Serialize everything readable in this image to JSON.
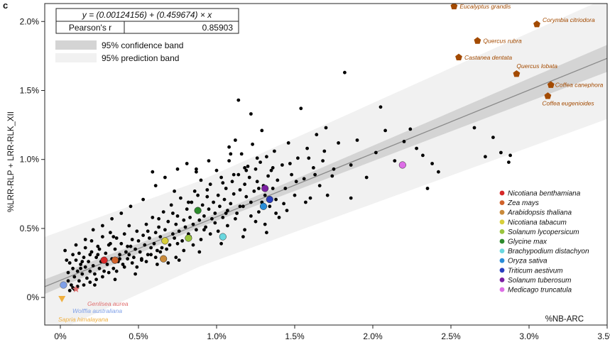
{
  "chart_data": {
    "type": "scatter",
    "panel_label": "c",
    "xlabel": "%NB-ARC",
    "ylabel": "%LRR-RLP + LRR-RLK_XII",
    "xlim": [
      -0.001,
      0.035
    ],
    "ylim": [
      -0.002,
      0.0213
    ],
    "x_ticks": [
      0,
      0.005,
      0.01,
      0.015,
      0.02,
      0.025,
      0.03,
      0.035
    ],
    "x_tick_labels": [
      "0%",
      "0.5%",
      "1.0%",
      "1.5%",
      "2.0%",
      "2.5%",
      "3.0%",
      "3.5%"
    ],
    "y_ticks": [
      0,
      0.005,
      0.01,
      0.015,
      0.02
    ],
    "y_tick_labels": [
      "0%",
      "0.5%",
      "1.0%",
      "1.5%",
      "2.0%"
    ],
    "grid": false,
    "fit": {
      "equation_text": "y = (0.00124156) + (0.459674) × x",
      "intercept": 0.00124156,
      "slope": 0.459674,
      "stat_label": "Pearson's r",
      "stat_value": "0.85903",
      "band_legend": [
        "95% confidence band",
        "95% prediction band"
      ],
      "colors": {
        "line": "#8a8a8a",
        "confidence": "#d4d4d4",
        "prediction": "#f1f1f1"
      }
    },
    "background_points": {
      "color": "#000000",
      "points": [
        [
          0.0003,
          0.0034
        ],
        [
          0.0004,
          0.0027
        ],
        [
          0.0005,
          0.0018
        ],
        [
          0.0005,
          0.0012
        ],
        [
          0.0006,
          0.0025
        ],
        [
          0.0007,
          0.0009
        ],
        [
          0.0008,
          0.0031
        ],
        [
          0.0008,
          0.0021
        ],
        [
          0.0009,
          0.0015
        ],
        [
          0.001,
          0.0027
        ],
        [
          0.001,
          0.0038
        ],
        [
          0.0011,
          0.0019
        ],
        [
          0.0012,
          0.0012
        ],
        [
          0.0012,
          0.0032
        ],
        [
          0.0013,
          0.0024
        ],
        [
          0.0014,
          0.0017
        ],
        [
          0.0015,
          0.0029
        ],
        [
          0.0016,
          0.0022
        ],
        [
          0.0016,
          0.0036
        ],
        [
          0.0017,
          0.0014
        ],
        [
          0.0018,
          0.0026
        ],
        [
          0.0019,
          0.0019
        ],
        [
          0.002,
          0.0033
        ],
        [
          0.002,
          0.0041
        ],
        [
          0.0021,
          0.0023
        ],
        [
          0.0022,
          0.0017
        ],
        [
          0.0023,
          0.0029
        ],
        [
          0.0024,
          0.0037
        ],
        [
          0.0025,
          0.0021
        ],
        [
          0.0026,
          0.0026
        ],
        [
          0.0027,
          0.0044
        ],
        [
          0.0028,
          0.0019
        ],
        [
          0.0029,
          0.0032
        ],
        [
          0.003,
          0.0024
        ],
        [
          0.0031,
          0.0038
        ],
        [
          0.0032,
          0.0047
        ],
        [
          0.0033,
          0.0028
        ],
        [
          0.0034,
          0.0021
        ],
        [
          0.0035,
          0.0035
        ],
        [
          0.0036,
          0.0043
        ],
        [
          0.0037,
          0.0026
        ],
        [
          0.0038,
          0.0031
        ],
        [
          0.0039,
          0.0039
        ],
        [
          0.004,
          0.0024
        ],
        [
          0.0041,
          0.0046
        ],
        [
          0.0042,
          0.0033
        ],
        [
          0.0043,
          0.0028
        ],
        [
          0.0044,
          0.0052
        ],
        [
          0.0045,
          0.0037
        ],
        [
          0.0046,
          0.0042
        ],
        [
          0.0047,
          0.0029
        ],
        [
          0.0048,
          0.0035
        ],
        [
          0.0049,
          0.0048
        ],
        [
          0.005,
          0.0041
        ],
        [
          0.0051,
          0.0033
        ],
        [
          0.0052,
          0.0027
        ],
        [
          0.0053,
          0.0045
        ],
        [
          0.0054,
          0.0038
        ],
        [
          0.0055,
          0.0053
        ],
        [
          0.0056,
          0.0031
        ],
        [
          0.0057,
          0.0043
        ],
        [
          0.0058,
          0.0036
        ],
        [
          0.0059,
          0.0058
        ],
        [
          0.006,
          0.0039
        ],
        [
          0.0061,
          0.0047
        ],
        [
          0.0062,
          0.0034
        ],
        [
          0.0063,
          0.0051
        ],
        [
          0.0064,
          0.0044
        ],
        [
          0.0065,
          0.0036
        ],
        [
          0.0066,
          0.0062
        ],
        [
          0.0067,
          0.0049
        ],
        [
          0.0068,
          0.0041
        ],
        [
          0.0069,
          0.0055
        ],
        [
          0.007,
          0.0038
        ],
        [
          0.0071,
          0.0067
        ],
        [
          0.0072,
          0.0046
        ],
        [
          0.0073,
          0.0043
        ],
        [
          0.0074,
          0.0053
        ],
        [
          0.0075,
          0.0059
        ],
        [
          0.0076,
          0.0048
        ],
        [
          0.0077,
          0.0072
        ],
        [
          0.0078,
          0.0041
        ],
        [
          0.0079,
          0.0056
        ],
        [
          0.008,
          0.0051
        ],
        [
          0.0081,
          0.0064
        ],
        [
          0.0082,
          0.0046
        ],
        [
          0.0083,
          0.0058
        ],
        [
          0.0084,
          0.0069
        ],
        [
          0.0085,
          0.0053
        ],
        [
          0.0086,
          0.0077
        ],
        [
          0.0087,
          0.0049
        ],
        [
          0.0088,
          0.0062
        ],
        [
          0.0089,
          0.0056
        ],
        [
          0.009,
          0.0085
        ],
        [
          0.0091,
          0.0067
        ],
        [
          0.0092,
          0.0059
        ],
        [
          0.0093,
          0.0051
        ],
        [
          0.0094,
          0.0073
        ],
        [
          0.0095,
          0.0064
        ],
        [
          0.0096,
          0.0082
        ],
        [
          0.0097,
          0.0057
        ],
        [
          0.0098,
          0.0069
        ],
        [
          0.0099,
          0.0061
        ],
        [
          0.01,
          0.0092
        ],
        [
          0.0101,
          0.0074
        ],
        [
          0.0102,
          0.0066
        ],
        [
          0.0103,
          0.0087
        ],
        [
          0.0104,
          0.0058
        ],
        [
          0.0105,
          0.0071
        ],
        [
          0.0106,
          0.0079
        ],
        [
          0.0107,
          0.0063
        ],
        [
          0.0108,
          0.0099
        ],
        [
          0.0109,
          0.0068
        ],
        [
          0.011,
          0.0084
        ],
        [
          0.0111,
          0.0075
        ],
        [
          0.0112,
          0.0114
        ],
        [
          0.0113,
          0.0061
        ],
        [
          0.0114,
          0.0089
        ],
        [
          0.0115,
          0.0078
        ],
        [
          0.0116,
          0.0104
        ],
        [
          0.0117,
          0.0066
        ],
        [
          0.0118,
          0.0082
        ],
        [
          0.0119,
          0.0073
        ],
        [
          0.012,
          0.0095
        ],
        [
          0.0121,
          0.0087
        ],
        [
          0.0122,
          0.0069
        ],
        [
          0.0123,
          0.0111
        ],
        [
          0.0124,
          0.0077
        ],
        [
          0.0125,
          0.0093
        ],
        [
          0.0126,
          0.0084
        ],
        [
          0.0127,
          0.0062
        ],
        [
          0.0128,
          0.0098
        ],
        [
          0.0129,
          0.0121
        ],
        [
          0.013,
          0.0081
        ],
        [
          0.0131,
          0.0074
        ],
        [
          0.0132,
          0.0102
        ],
        [
          0.0133,
          0.0088
        ],
        [
          0.0134,
          0.0066
        ],
        [
          0.0135,
          0.0092
        ],
        [
          0.0136,
          0.0079
        ],
        [
          0.0137,
          0.0106
        ],
        [
          0.0138,
          0.0071
        ],
        [
          0.0139,
          0.0085
        ],
        [
          0.014,
          0.0058
        ],
        [
          0.0142,
          0.0096
        ],
        [
          0.0144,
          0.0079
        ],
        [
          0.0146,
          0.0112
        ],
        [
          0.0148,
          0.0089
        ],
        [
          0.015,
          0.0074
        ],
        [
          0.0152,
          0.0101
        ],
        [
          0.0154,
          0.0137
        ],
        [
          0.0156,
          0.0086
        ],
        [
          0.0158,
          0.0108
        ],
        [
          0.016,
          0.0072
        ],
        [
          0.0162,
          0.0094
        ],
        [
          0.0164,
          0.0118
        ],
        [
          0.0166,
          0.0081
        ],
        [
          0.0168,
          0.0099
        ],
        [
          0.017,
          0.0123
        ],
        [
          0.0174,
          0.0088
        ],
        [
          0.0178,
          0.0112
        ],
        [
          0.0182,
          0.0163
        ],
        [
          0.0186,
          0.0096
        ],
        [
          0.019,
          0.0114
        ],
        [
          0.0196,
          0.0087
        ],
        [
          0.0202,
          0.0105
        ],
        [
          0.0205,
          0.0138
        ],
        [
          0.0208,
          0.0121
        ],
        [
          0.0214,
          0.0099
        ],
        [
          0.022,
          0.0113
        ],
        [
          0.0224,
          0.0122
        ],
        [
          0.0228,
          0.0108
        ],
        [
          0.0232,
          0.0103
        ],
        [
          0.0235,
          0.0079
        ],
        [
          0.0238,
          0.0097
        ],
        [
          0.0242,
          0.0091
        ],
        [
          0.0265,
          0.0123
        ],
        [
          0.0272,
          0.0102
        ],
        [
          0.0277,
          0.0116
        ],
        [
          0.0282,
          0.0105
        ],
        [
          0.0287,
          0.0098
        ],
        [
          0.0288,
          0.0103
        ],
        [
          0.0006,
          0.0005
        ],
        [
          0.0008,
          0.0007
        ],
        [
          0.0011,
          0.0008
        ],
        [
          0.0015,
          0.0009
        ],
        [
          0.0019,
          0.0011
        ],
        [
          0.0023,
          0.0013
        ],
        [
          0.0027,
          0.0015
        ],
        [
          0.0031,
          0.0018
        ],
        [
          0.0036,
          0.0019
        ],
        [
          0.0041,
          0.0022
        ],
        [
          0.0046,
          0.0025
        ],
        [
          0.0052,
          0.0028
        ],
        [
          0.0058,
          0.0031
        ],
        [
          0.0064,
          0.0033
        ],
        [
          0.0069,
          0.0025
        ],
        [
          0.0074,
          0.0029
        ],
        [
          0.0079,
          0.0034
        ],
        [
          0.0085,
          0.0038
        ],
        [
          0.009,
          0.0042
        ],
        [
          0.0096,
          0.0046
        ],
        [
          0.0101,
          0.0048
        ],
        [
          0.0107,
          0.0052
        ],
        [
          0.0112,
          0.0057
        ],
        [
          0.0118,
          0.0049
        ],
        [
          0.0125,
          0.0055
        ],
        [
          0.0132,
          0.0047
        ],
        [
          0.0138,
          0.0061
        ],
        [
          0.0145,
          0.0063
        ],
        [
          0.0157,
          0.0069
        ],
        [
          0.0171,
          0.0074
        ],
        [
          0.0186,
          0.0072
        ],
        [
          0.0016,
          0.0042
        ],
        [
          0.0021,
          0.0049
        ],
        [
          0.0027,
          0.0052
        ],
        [
          0.0033,
          0.0057
        ],
        [
          0.0039,
          0.0061
        ],
        [
          0.0045,
          0.0066
        ],
        [
          0.0053,
          0.0071
        ],
        [
          0.0061,
          0.0081
        ],
        [
          0.0067,
          0.0087
        ],
        [
          0.0073,
          0.0077
        ],
        [
          0.0081,
          0.0097
        ],
        [
          0.0087,
          0.0093
        ],
        [
          0.0095,
          0.0099
        ],
        [
          0.0109,
          0.0104
        ],
        [
          0.0118,
          0.0094
        ],
        [
          0.0126,
          0.0101
        ],
        [
          0.0013,
          0.0021
        ],
        [
          0.0019,
          0.0031
        ],
        [
          0.0025,
          0.0035
        ],
        [
          0.0032,
          0.0039
        ],
        [
          0.0038,
          0.0028
        ],
        [
          0.0044,
          0.0031
        ],
        [
          0.0049,
          0.0022
        ],
        [
          0.0055,
          0.0026
        ],
        [
          0.0061,
          0.0029
        ],
        [
          0.0068,
          0.0035
        ],
        [
          0.0075,
          0.0039
        ],
        [
          0.0083,
          0.0044
        ],
        [
          0.0092,
          0.0049
        ],
        [
          0.0099,
          0.0054
        ],
        [
          0.0106,
          0.0061
        ],
        [
          0.0115,
          0.0066
        ],
        [
          0.0122,
          0.0059
        ],
        [
          0.0129,
          0.0069
        ],
        [
          0.0135,
          0.0071
        ],
        [
          0.0143,
          0.0068
        ],
        [
          0.0151,
          0.0084
        ],
        [
          0.0163,
          0.0089
        ],
        [
          0.0175,
          0.0093
        ],
        [
          0.0009,
          0.0006
        ],
        [
          0.0014,
          0.0026
        ],
        [
          0.0024,
          0.0031
        ],
        [
          0.0034,
          0.0044
        ],
        [
          0.0043,
          0.0037
        ],
        [
          0.0056,
          0.0048
        ],
        [
          0.0063,
          0.0057
        ],
        [
          0.0072,
          0.0061
        ],
        [
          0.0082,
          0.0069
        ],
        [
          0.0088,
          0.0074
        ],
        [
          0.0094,
          0.0078
        ],
        [
          0.0104,
          0.0083
        ],
        [
          0.0111,
          0.0089
        ],
        [
          0.0119,
          0.0092
        ],
        [
          0.0127,
          0.0079
        ],
        [
          0.0136,
          0.0094
        ],
        [
          0.0147,
          0.0097
        ],
        [
          0.0159,
          0.0101
        ],
        [
          0.0169,
          0.0106
        ],
        [
          0.0022,
          0.0009
        ],
        [
          0.0035,
          0.0013
        ],
        [
          0.0048,
          0.0017
        ],
        [
          0.0062,
          0.0024
        ],
        [
          0.0076,
          0.0027
        ],
        [
          0.0089,
          0.0033
        ],
        [
          0.0103,
          0.0039
        ],
        [
          0.0117,
          0.0044
        ],
        [
          0.0131,
          0.0053
        ],
        [
          0.0059,
          0.0091
        ],
        [
          0.0075,
          0.0093
        ],
        [
          0.0087,
          0.0091
        ],
        [
          0.0108,
          0.0109
        ],
        [
          0.0122,
          0.0133
        ],
        [
          0.0114,
          0.0143
        ]
      ]
    },
    "species": [
      {
        "name": "Nicotiana benthamiana",
        "color": "#d62828",
        "x": 0.0028,
        "y": 0.0027
      },
      {
        "name": "Zea mays",
        "color": "#d0622b",
        "x": 0.0035,
        "y": 0.0027
      },
      {
        "name": "Arabidopsis thaliana",
        "color": "#c98a3a",
        "x": 0.0066,
        "y": 0.0028
      },
      {
        "name": "Nicotiana tabacum",
        "color": "#d8cf3a",
        "x": 0.0067,
        "y": 0.0041
      },
      {
        "name": "Solanum lycopersicum",
        "color": "#9ac43c",
        "x": 0.0082,
        "y": 0.0043
      },
      {
        "name": "Glycine max",
        "color": "#2c8a2c",
        "x": 0.0088,
        "y": 0.0063
      },
      {
        "name": "Brachypodium distachyon",
        "color": "#6ad8e0",
        "x": 0.0104,
        "y": 0.0044
      },
      {
        "name": "Oryza sativa",
        "color": "#2a8dd8",
        "x": 0.013,
        "y": 0.0066
      },
      {
        "name": "Triticum aestivum",
        "color": "#2a3fbf",
        "x": 0.0134,
        "y": 0.0071
      },
      {
        "name": "Solanum tuberosum",
        "color": "#7b1fa2",
        "x": 0.0131,
        "y": 0.0079
      },
      {
        "name": "Medicago truncatula",
        "color": "#dd6ee6",
        "x": 0.0219,
        "y": 0.0096
      }
    ],
    "trees": {
      "color": "#a34a00",
      "points": [
        {
          "name": "Eucalyptus grandis",
          "x": 0.0252,
          "y": 0.0211
        },
        {
          "name": "Corymbia citriodora",
          "x": 0.0305,
          "y": 0.0198
        },
        {
          "name": "Quercus rubra",
          "x": 0.0267,
          "y": 0.0186
        },
        {
          "name": "Castanea dentata",
          "x": 0.0255,
          "y": 0.0174
        },
        {
          "name": "Quercus lobata",
          "x": 0.0292,
          "y": 0.0162
        },
        {
          "name": "Coffea canephora",
          "x": 0.0314,
          "y": 0.0154
        },
        {
          "name": "Coffea eugenioides",
          "x": 0.0312,
          "y": 0.0146
        }
      ]
    },
    "low_annotations": [
      {
        "name": "Genlisea aurea",
        "color": "#e07070",
        "marker": "star",
        "x": 0.001,
        "y": 0.0006
      },
      {
        "name": "Wolffia australiana",
        "color": "#7fa0e8",
        "marker": "circle",
        "x": 0.0002,
        "y": 0.0009
      },
      {
        "name": "Sapria himalayana",
        "color": "#f0b040",
        "marker": "triangle",
        "x": 0.0001,
        "y": -0.0001
      }
    ]
  }
}
